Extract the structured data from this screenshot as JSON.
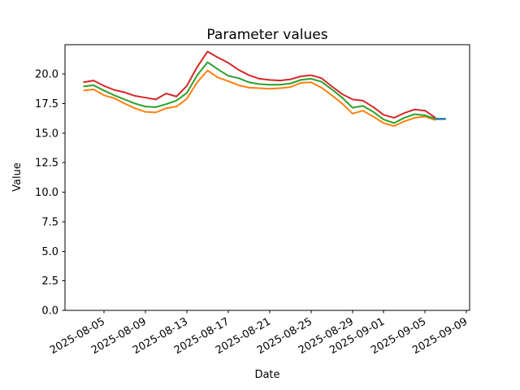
{
  "chart_data": {
    "type": "line",
    "title": "Parameter values",
    "xlabel": "Date",
    "ylabel": "Value",
    "grid": false,
    "legend": "none",
    "ylim": [
      0,
      22.5
    ],
    "xlim_days_rel_first_tick": [
      -3.76,
      35.3
    ],
    "yticks": [
      "0.0",
      "2.5",
      "5.0",
      "7.5",
      "10.0",
      "12.5",
      "15.0",
      "17.5",
      "20.0"
    ],
    "xtick_labels": [
      "2025-08-05",
      "2025-08-09",
      "2025-08-13",
      "2025-08-17",
      "2025-08-21",
      "2025-08-25",
      "2025-08-29",
      "2025-09-01",
      "2025-09-05",
      "2025-09-09"
    ],
    "x_dates": [
      "2025-08-03",
      "2025-08-04",
      "2025-08-05",
      "2025-08-06",
      "2025-08-07",
      "2025-08-08",
      "2025-08-09",
      "2025-08-10",
      "2025-08-11",
      "2025-08-12",
      "2025-08-13",
      "2025-08-14",
      "2025-08-15",
      "2025-08-16",
      "2025-08-17",
      "2025-08-18",
      "2025-08-19",
      "2025-08-20",
      "2025-08-21",
      "2025-08-22",
      "2025-08-23",
      "2025-08-24",
      "2025-08-25",
      "2025-08-26",
      "2025-08-27",
      "2025-08-28",
      "2025-08-29",
      "2025-08-30",
      "2025-08-31",
      "2025-09-01",
      "2025-09-02",
      "2025-09-03",
      "2025-09-04",
      "2025-09-05",
      "2025-09-06"
    ],
    "series": [
      {
        "name": "orange",
        "color": "#ff7f0e",
        "width": 2,
        "dates": null,
        "values": [
          18.6,
          18.7,
          18.2,
          17.95,
          17.5,
          17.1,
          16.8,
          16.75,
          17.1,
          17.25,
          17.9,
          19.3,
          20.3,
          19.7,
          19.4,
          19.05,
          18.85,
          18.8,
          18.75,
          18.8,
          18.9,
          19.25,
          19.3,
          18.85,
          18.2,
          17.5,
          16.65,
          16.9,
          16.4,
          15.85,
          15.6,
          16.0,
          16.3,
          16.4,
          16.1
        ]
      },
      {
        "name": "green",
        "color": "#2ca02c",
        "width": 2,
        "dates": null,
        "values": [
          18.95,
          19.05,
          18.6,
          18.2,
          17.85,
          17.5,
          17.25,
          17.2,
          17.45,
          17.75,
          18.4,
          19.9,
          21.0,
          20.4,
          19.85,
          19.65,
          19.3,
          19.15,
          19.1,
          19.1,
          19.2,
          19.5,
          19.6,
          19.35,
          18.7,
          18.0,
          17.15,
          17.3,
          16.8,
          16.15,
          15.85,
          16.3,
          16.6,
          16.5,
          16.2
        ]
      },
      {
        "name": "red",
        "color": "#d62728",
        "width": 2,
        "dates": null,
        "values": [
          19.3,
          19.45,
          19.0,
          18.65,
          18.45,
          18.15,
          18.0,
          17.85,
          18.35,
          18.1,
          19.0,
          20.6,
          21.9,
          21.4,
          20.95,
          20.35,
          19.9,
          19.6,
          19.5,
          19.45,
          19.55,
          19.8,
          19.9,
          19.65,
          18.95,
          18.3,
          17.85,
          17.75,
          17.2,
          16.55,
          16.3,
          16.7,
          17.0,
          16.9,
          16.3
        ]
      },
      {
        "name": "blue",
        "color": "#1f77b4",
        "width": 2.5,
        "dates": [
          "2025-09-06",
          "2025-09-07"
        ],
        "values": [
          16.2,
          16.2
        ]
      }
    ]
  }
}
